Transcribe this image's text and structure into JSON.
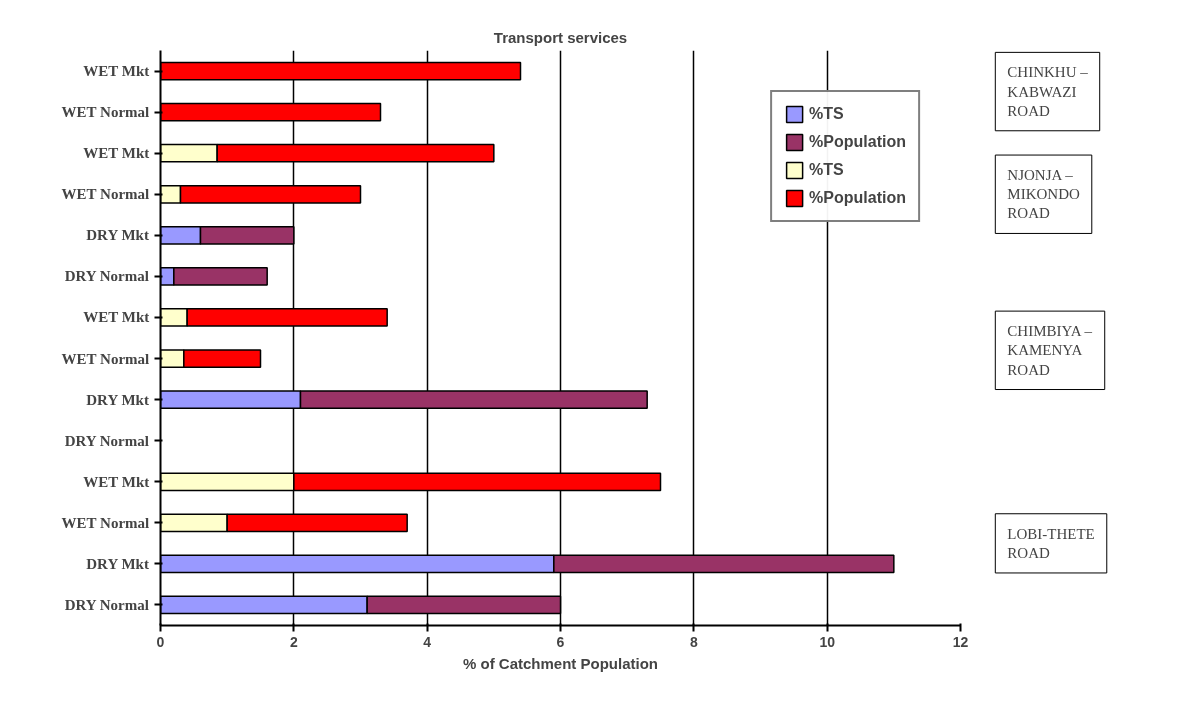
{
  "chart_data": {
    "type": "bar",
    "orientation": "horizontal",
    "stacked": true,
    "title": "Transport services",
    "xlabel": "% of Catchment Population",
    "categories": [
      "WET Mkt",
      "WET Normal",
      "WET Mkt",
      "WET Normal",
      "DRY Mkt",
      "DRY Normal",
      "WET Mkt",
      "WET Normal",
      "DRY Mkt",
      "DRY Normal",
      "WET Mkt",
      "WET Normal",
      "DRY Mkt",
      "DRY Normal"
    ],
    "series": [
      {
        "name": "%TS",
        "color": "#9999ff",
        "values": [
          null,
          null,
          null,
          null,
          0.6,
          0.2,
          null,
          null,
          2.1,
          null,
          null,
          null,
          5.9,
          3.1
        ]
      },
      {
        "name": "%Population",
        "color": "#993366",
        "values": [
          null,
          null,
          null,
          null,
          1.4,
          1.4,
          null,
          null,
          5.2,
          null,
          null,
          null,
          5.1,
          2.9
        ]
      },
      {
        "name": "%TS",
        "color": "#ffffcc",
        "values": [
          null,
          null,
          0.85,
          0.3,
          null,
          null,
          0.4,
          0.35,
          null,
          null,
          2.0,
          1.0,
          null,
          null
        ]
      },
      {
        "name": "%Population",
        "color": "#ff0000",
        "values": [
          5.4,
          3.3,
          4.15,
          2.7,
          null,
          null,
          3.0,
          1.15,
          null,
          null,
          5.5,
          2.7,
          null,
          null
        ]
      }
    ],
    "xlim": [
      0,
      12
    ],
    "xticks": [
      0,
      2,
      4,
      6,
      8,
      10,
      12
    ],
    "grid": "x",
    "legend": "top right",
    "annotations": [
      "CHINKHU – KABWAZI ROAD",
      "NJONJA – MIKONDO ROAD",
      "CHIMBIYA – KAMENYA ROAD",
      "LOBI-THETE ROAD"
    ]
  }
}
